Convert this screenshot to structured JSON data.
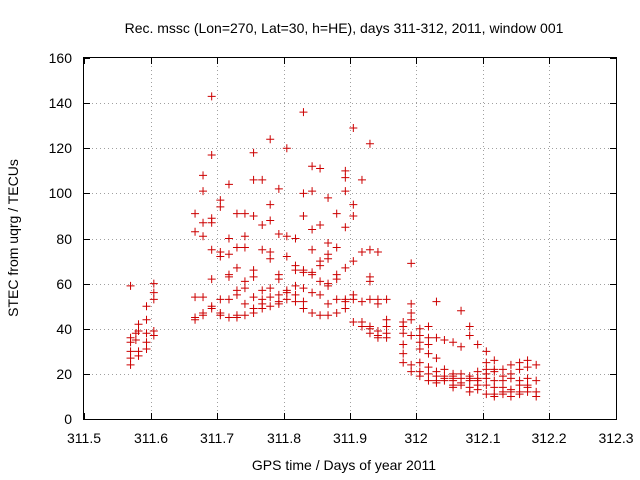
{
  "chart_data": {
    "type": "scatter",
    "title": "Rec. mssc (Lon=270, Lat=30, h=HE), days 311-312, 2011, window 001",
    "xlabel": "GPS time / Days of year 2011",
    "ylabel": "STEC from uqrg / TECUs",
    "xlim": [
      311.5,
      312.3
    ],
    "ylim": [
      0,
      160
    ],
    "x_ticks": [
      311.5,
      311.6,
      311.7,
      311.8,
      311.9,
      312.0,
      312.1,
      312.2,
      312.3
    ],
    "x_tick_labels": [
      "311.5",
      "311.6",
      "311.7",
      "311.8",
      "311.9",
      "312",
      "312.1",
      "312.2",
      "312.3"
    ],
    "y_ticks": [
      0,
      20,
      40,
      60,
      80,
      100,
      120,
      140,
      160
    ],
    "y_tick_labels": [
      "0",
      "20",
      "40",
      "60",
      "80",
      "100",
      "120",
      "140",
      "160"
    ],
    "grid": true,
    "marker": "plus",
    "marker_color": "#cc0000",
    "points": [
      [
        311.57,
        59
      ],
      [
        311.57,
        36
      ],
      [
        311.57,
        34
      ],
      [
        311.57,
        30
      ],
      [
        311.57,
        27
      ],
      [
        311.57,
        24
      ],
      [
        311.578,
        38
      ],
      [
        311.578,
        35
      ],
      [
        311.582,
        42
      ],
      [
        311.582,
        39
      ],
      [
        311.582,
        30
      ],
      [
        311.582,
        28
      ],
      [
        311.594,
        50
      ],
      [
        311.594,
        44
      ],
      [
        311.594,
        38
      ],
      [
        311.594,
        34
      ],
      [
        311.594,
        31
      ],
      [
        311.605,
        60
      ],
      [
        311.605,
        56
      ],
      [
        311.605,
        53
      ],
      [
        311.605,
        39
      ],
      [
        311.605,
        37
      ],
      [
        311.667,
        91
      ],
      [
        311.667,
        83
      ],
      [
        311.667,
        54
      ],
      [
        311.667,
        45
      ],
      [
        311.667,
        44
      ],
      [
        311.679,
        108
      ],
      [
        311.679,
        101
      ],
      [
        311.679,
        87
      ],
      [
        311.679,
        81
      ],
      [
        311.679,
        54
      ],
      [
        311.679,
        47
      ],
      [
        311.679,
        46
      ],
      [
        311.692,
        143
      ],
      [
        311.692,
        117
      ],
      [
        311.692,
        89
      ],
      [
        311.692,
        87
      ],
      [
        311.692,
        75
      ],
      [
        311.692,
        62
      ],
      [
        311.692,
        50
      ],
      [
        311.692,
        49
      ],
      [
        311.705,
        97
      ],
      [
        311.705,
        94
      ],
      [
        311.705,
        74
      ],
      [
        311.705,
        72
      ],
      [
        311.705,
        53
      ],
      [
        311.705,
        47
      ],
      [
        311.705,
        46
      ],
      [
        311.718,
        104
      ],
      [
        311.718,
        80
      ],
      [
        311.718,
        73
      ],
      [
        311.718,
        64
      ],
      [
        311.718,
        63
      ],
      [
        311.718,
        53
      ],
      [
        311.718,
        45
      ],
      [
        311.73,
        91
      ],
      [
        311.73,
        76
      ],
      [
        311.73,
        67
      ],
      [
        311.73,
        57
      ],
      [
        311.73,
        55
      ],
      [
        311.73,
        46
      ],
      [
        311.73,
        45
      ],
      [
        311.742,
        91
      ],
      [
        311.742,
        81
      ],
      [
        311.742,
        76
      ],
      [
        311.742,
        61
      ],
      [
        311.742,
        58
      ],
      [
        311.742,
        51
      ],
      [
        311.742,
        46
      ],
      [
        311.755,
        118
      ],
      [
        311.755,
        106
      ],
      [
        311.755,
        90
      ],
      [
        311.755,
        66
      ],
      [
        311.755,
        63
      ],
      [
        311.755,
        54
      ],
      [
        311.755,
        49
      ],
      [
        311.755,
        47
      ],
      [
        311.768,
        106
      ],
      [
        311.768,
        86
      ],
      [
        311.768,
        75
      ],
      [
        311.768,
        57
      ],
      [
        311.768,
        53
      ],
      [
        311.768,
        51
      ],
      [
        311.768,
        49
      ],
      [
        311.78,
        124
      ],
      [
        311.78,
        95
      ],
      [
        311.78,
        88
      ],
      [
        311.78,
        74
      ],
      [
        311.78,
        71
      ],
      [
        311.78,
        58
      ],
      [
        311.78,
        54
      ],
      [
        311.78,
        50
      ],
      [
        311.793,
        102
      ],
      [
        311.793,
        82
      ],
      [
        311.793,
        64
      ],
      [
        311.793,
        62
      ],
      [
        311.793,
        55
      ],
      [
        311.793,
        52
      ],
      [
        311.793,
        51
      ],
      [
        311.805,
        120
      ],
      [
        311.805,
        81
      ],
      [
        311.805,
        72
      ],
      [
        311.805,
        57
      ],
      [
        311.805,
        56
      ],
      [
        311.805,
        53
      ],
      [
        311.818,
        80
      ],
      [
        311.818,
        68
      ],
      [
        311.818,
        66
      ],
      [
        311.818,
        59
      ],
      [
        311.818,
        55
      ],
      [
        311.818,
        52
      ],
      [
        311.83,
        136
      ],
      [
        311.83,
        100
      ],
      [
        311.83,
        90
      ],
      [
        311.83,
        66
      ],
      [
        311.83,
        65
      ],
      [
        311.83,
        58
      ],
      [
        311.83,
        52
      ],
      [
        311.83,
        49
      ],
      [
        311.843,
        112
      ],
      [
        311.843,
        101
      ],
      [
        311.843,
        84
      ],
      [
        311.843,
        75
      ],
      [
        311.843,
        65
      ],
      [
        311.843,
        64
      ],
      [
        311.843,
        56
      ],
      [
        311.843,
        47
      ],
      [
        311.855,
        111
      ],
      [
        311.855,
        86
      ],
      [
        311.855,
        70
      ],
      [
        311.855,
        68
      ],
      [
        311.855,
        61
      ],
      [
        311.855,
        55
      ],
      [
        311.855,
        46
      ],
      [
        311.867,
        98
      ],
      [
        311.867,
        78
      ],
      [
        311.867,
        73
      ],
      [
        311.867,
        71
      ],
      [
        311.867,
        60
      ],
      [
        311.867,
        59
      ],
      [
        311.867,
        51
      ],
      [
        311.867,
        46
      ],
      [
        311.88,
        91
      ],
      [
        311.88,
        76
      ],
      [
        311.88,
        64
      ],
      [
        311.88,
        62
      ],
      [
        311.88,
        53
      ],
      [
        311.88,
        47
      ],
      [
        311.893,
        110
      ],
      [
        311.893,
        107
      ],
      [
        311.893,
        101
      ],
      [
        311.893,
        85
      ],
      [
        311.893,
        67
      ],
      [
        311.893,
        53
      ],
      [
        311.893,
        52
      ],
      [
        311.893,
        49
      ],
      [
        311.905,
        129
      ],
      [
        311.905,
        95
      ],
      [
        311.905,
        90
      ],
      [
        311.905,
        70
      ],
      [
        311.905,
        55
      ],
      [
        311.905,
        53
      ],
      [
        311.905,
        43
      ],
      [
        311.918,
        106
      ],
      [
        311.918,
        74
      ],
      [
        311.918,
        52
      ],
      [
        311.918,
        43
      ],
      [
        311.918,
        41
      ],
      [
        311.93,
        122
      ],
      [
        311.93,
        75
      ],
      [
        311.93,
        63
      ],
      [
        311.93,
        61
      ],
      [
        311.93,
        53
      ],
      [
        311.93,
        41
      ],
      [
        311.93,
        40
      ],
      [
        311.93,
        38
      ],
      [
        311.942,
        74
      ],
      [
        311.942,
        53
      ],
      [
        311.942,
        51
      ],
      [
        311.942,
        39
      ],
      [
        311.942,
        37
      ],
      [
        311.942,
        36
      ],
      [
        311.955,
        53
      ],
      [
        311.955,
        44
      ],
      [
        311.955,
        41
      ],
      [
        311.955,
        38
      ],
      [
        311.955,
        36
      ],
      [
        311.98,
        43
      ],
      [
        311.98,
        41
      ],
      [
        311.98,
        38
      ],
      [
        311.98,
        33
      ],
      [
        311.98,
        29
      ],
      [
        311.98,
        25
      ],
      [
        311.992,
        69
      ],
      [
        311.992,
        51
      ],
      [
        311.992,
        47
      ],
      [
        311.992,
        44
      ],
      [
        311.992,
        37
      ],
      [
        311.992,
        24
      ],
      [
        311.992,
        21
      ],
      [
        312.005,
        40
      ],
      [
        312.005,
        37
      ],
      [
        312.005,
        34
      ],
      [
        312.005,
        31
      ],
      [
        312.005,
        25
      ],
      [
        312.005,
        21
      ],
      [
        312.005,
        19
      ],
      [
        312.018,
        41
      ],
      [
        312.018,
        36
      ],
      [
        312.018,
        33
      ],
      [
        312.018,
        29
      ],
      [
        312.018,
        23
      ],
      [
        312.018,
        20
      ],
      [
        312.018,
        17
      ],
      [
        312.03,
        52
      ],
      [
        312.03,
        36
      ],
      [
        312.03,
        27
      ],
      [
        312.03,
        21
      ],
      [
        312.03,
        19
      ],
      [
        312.03,
        17
      ],
      [
        312.03,
        16
      ],
      [
        312.042,
        35
      ],
      [
        312.042,
        22
      ],
      [
        312.042,
        19
      ],
      [
        312.042,
        18
      ],
      [
        312.042,
        17
      ],
      [
        312.055,
        34
      ],
      [
        312.055,
        20
      ],
      [
        312.055,
        19
      ],
      [
        312.055,
        18
      ],
      [
        312.055,
        17
      ],
      [
        312.055,
        15
      ],
      [
        312.055,
        14
      ],
      [
        312.067,
        48
      ],
      [
        312.067,
        32
      ],
      [
        312.067,
        20
      ],
      [
        312.067,
        18
      ],
      [
        312.067,
        16
      ],
      [
        312.067,
        15
      ],
      [
        312.08,
        41
      ],
      [
        312.08,
        37
      ],
      [
        312.08,
        19
      ],
      [
        312.08,
        18
      ],
      [
        312.08,
        17
      ],
      [
        312.08,
        14
      ],
      [
        312.08,
        12
      ],
      [
        312.092,
        33
      ],
      [
        312.092,
        21
      ],
      [
        312.092,
        18
      ],
      [
        312.092,
        17
      ],
      [
        312.092,
        15
      ],
      [
        312.092,
        13
      ],
      [
        312.105,
        30
      ],
      [
        312.105,
        25
      ],
      [
        312.105,
        22
      ],
      [
        312.105,
        20
      ],
      [
        312.105,
        18
      ],
      [
        312.105,
        15
      ],
      [
        312.105,
        11
      ],
      [
        312.117,
        26
      ],
      [
        312.117,
        22
      ],
      [
        312.117,
        21
      ],
      [
        312.117,
        17
      ],
      [
        312.117,
        14
      ],
      [
        312.117,
        11
      ],
      [
        312.117,
        10
      ],
      [
        312.13,
        22
      ],
      [
        312.13,
        19
      ],
      [
        312.13,
        17
      ],
      [
        312.13,
        14
      ],
      [
        312.13,
        12
      ],
      [
        312.13,
        11
      ],
      [
        312.142,
        24
      ],
      [
        312.142,
        20
      ],
      [
        312.142,
        18
      ],
      [
        312.142,
        13
      ],
      [
        312.142,
        12
      ],
      [
        312.142,
        10
      ],
      [
        312.155,
        25
      ],
      [
        312.155,
        22
      ],
      [
        312.155,
        17
      ],
      [
        312.155,
        15
      ],
      [
        312.155,
        12
      ],
      [
        312.155,
        11
      ],
      [
        312.167,
        26
      ],
      [
        312.167,
        23
      ],
      [
        312.167,
        18
      ],
      [
        312.167,
        15
      ],
      [
        312.167,
        14
      ],
      [
        312.167,
        12
      ],
      [
        312.18,
        24
      ],
      [
        312.18,
        17
      ],
      [
        312.18,
        12
      ],
      [
        312.18,
        10
      ]
    ]
  }
}
